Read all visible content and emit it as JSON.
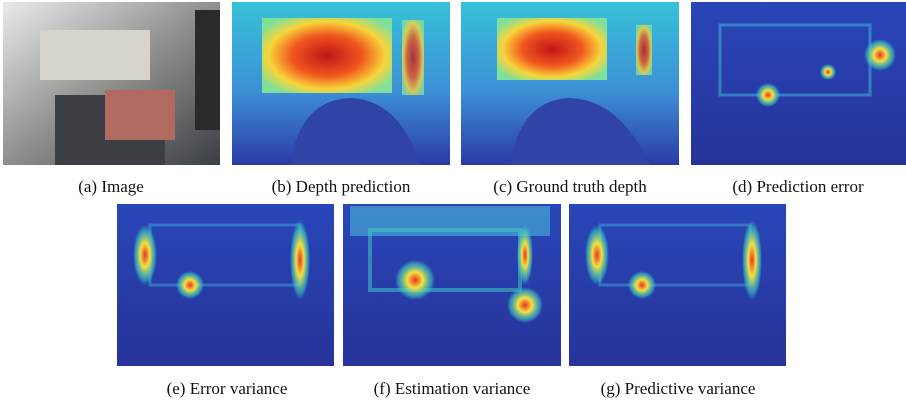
{
  "figure": {
    "top_row": [
      {
        "caption": "(a) Image"
      },
      {
        "caption": "(b) Depth prediction"
      },
      {
        "caption": "(c) Ground truth depth"
      },
      {
        "caption": "(d) Prediction error"
      }
    ],
    "bottom_row": [
      {
        "caption": "(e) Error variance"
      },
      {
        "caption": "(f) Estimation variance"
      },
      {
        "caption": "(g) Predictive variance"
      }
    ]
  }
}
